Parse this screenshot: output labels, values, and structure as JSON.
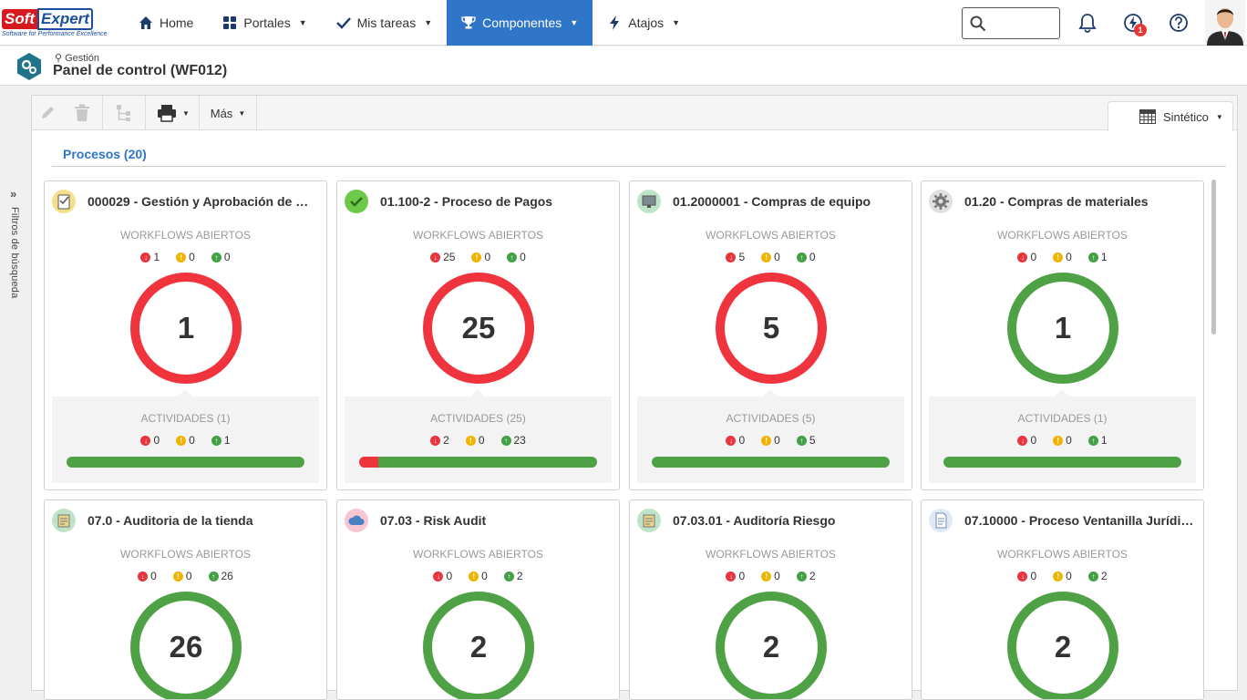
{
  "brand": {
    "soft": "Soft",
    "expert": "Expert",
    "tagline": "Software for Performance Excellence"
  },
  "nav": [
    {
      "label": "Home",
      "icon": "home-icon",
      "active": false,
      "caret": false
    },
    {
      "label": "Portales",
      "icon": "grid-icon",
      "active": false,
      "caret": true
    },
    {
      "label": "Mis tareas",
      "icon": "check-icon",
      "active": false,
      "caret": true
    },
    {
      "label": "Componentes",
      "icon": "trophy-icon",
      "active": true,
      "caret": true
    },
    {
      "label": "Atajos",
      "icon": "bolt-icon",
      "active": false,
      "caret": true
    }
  ],
  "topbar": {
    "notifications_badge": "1"
  },
  "header": {
    "breadcrumb": "Gestión",
    "title": "Panel de control (WF012)"
  },
  "rail": {
    "label": "Filtros de búsqueda"
  },
  "toolbar": {
    "more_label": "Más",
    "view_label": "Sintético"
  },
  "section": {
    "title": "Procesos (20)"
  },
  "labels": {
    "workflows": "WORKFLOWS ABIERTOS"
  },
  "colors": {
    "accent": "#2f76c8",
    "late": "#f0343e",
    "warning": "#f0b400",
    "ontime": "#4ea245"
  },
  "cards": [
    {
      "title": "000029 - Gestión y Aprobación de …",
      "icon": "clipboard-icon",
      "wf": [
        "1",
        "0",
        "0"
      ],
      "total": "1",
      "status": "red",
      "activities": {
        "label": "ACTIVIDADES (1)",
        "counts": [
          "0",
          "0",
          "1"
        ],
        "late_fraction": 0
      }
    },
    {
      "title": "01.100-2 - Proceso de Pagos",
      "icon": "check-circle-icon",
      "wf": [
        "25",
        "0",
        "0"
      ],
      "total": "25",
      "status": "red",
      "activities": {
        "label": "ACTIVIDADES (25)",
        "counts": [
          "2",
          "0",
          "23"
        ],
        "late_fraction": 0.08
      }
    },
    {
      "title": "01.2000001 - Compras de equipo",
      "icon": "monitor-icon",
      "wf": [
        "5",
        "0",
        "0"
      ],
      "total": "5",
      "status": "red",
      "activities": {
        "label": "ACTIVIDADES (5)",
        "counts": [
          "0",
          "0",
          "5"
        ],
        "late_fraction": 0
      }
    },
    {
      "title": "01.20 - Compras de materiales",
      "icon": "gear-icon",
      "wf": [
        "0",
        "0",
        "1"
      ],
      "total": "1",
      "status": "green",
      "activities": {
        "label": "ACTIVIDADES (1)",
        "counts": [
          "0",
          "0",
          "1"
        ],
        "late_fraction": 0
      }
    },
    {
      "title": "07.0 - Auditoria de la tienda",
      "icon": "audit-icon",
      "wf": [
        "0",
        "0",
        "26"
      ],
      "total": "26",
      "status": "green"
    },
    {
      "title": "07.03 - Risk Audit",
      "icon": "cloud-icon",
      "wf": [
        "0",
        "0",
        "2"
      ],
      "total": "2",
      "status": "green"
    },
    {
      "title": "07.03.01 - Auditoría Riesgo",
      "icon": "audit-icon",
      "wf": [
        "0",
        "0",
        "2"
      ],
      "total": "2",
      "status": "green"
    },
    {
      "title": "07.10000 - Proceso Ventanilla Jurídi…",
      "icon": "document-icon",
      "wf": [
        "0",
        "0",
        "2"
      ],
      "total": "2",
      "status": "green"
    }
  ]
}
